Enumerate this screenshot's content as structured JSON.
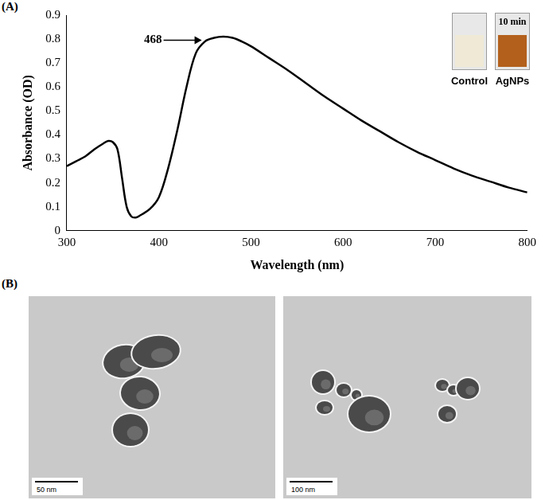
{
  "panels": [
    "(A)",
    "(B)"
  ],
  "chart_data": {
    "type": "line",
    "x_label": "Wavelength (nm)",
    "y_label": "Absorbance (OD)",
    "x": [
      300,
      310,
      320,
      330,
      340,
      345,
      350,
      355,
      360,
      365,
      370,
      375,
      380,
      390,
      400,
      410,
      420,
      430,
      440,
      450,
      460,
      470,
      480,
      490,
      500,
      520,
      540,
      560,
      580,
      600,
      620,
      640,
      660,
      680,
      700,
      720,
      740,
      760,
      780,
      800
    ],
    "values": [
      0.27,
      0.29,
      0.31,
      0.34,
      0.365,
      0.375,
      0.37,
      0.34,
      0.22,
      0.1,
      0.06,
      0.055,
      0.065,
      0.09,
      0.14,
      0.26,
      0.42,
      0.6,
      0.74,
      0.79,
      0.805,
      0.81,
      0.805,
      0.79,
      0.77,
      0.72,
      0.67,
      0.615,
      0.56,
      0.51,
      0.46,
      0.415,
      0.37,
      0.33,
      0.295,
      0.26,
      0.23,
      0.205,
      0.18,
      0.16
    ],
    "color": "#000000",
    "xlim": [
      300,
      800
    ],
    "xticks": [
      300,
      400,
      500,
      600,
      700,
      800
    ],
    "ylim": [
      0,
      0.9
    ],
    "yticks": [
      0,
      0.1,
      0.2,
      0.3,
      0.4,
      0.5,
      0.6,
      0.7,
      0.8,
      0.9
    ],
    "grid": false,
    "annotations": [
      {
        "text": "468",
        "x": 468
      }
    ]
  },
  "inset": {
    "cuvettes": [
      {
        "label": "Control",
        "color": "#efe9d6"
      },
      {
        "label": "AgNPs",
        "color": "#b3601c",
        "text": "10 min"
      }
    ]
  },
  "tem_images": [
    {
      "scale_bar": "50 nm"
    },
    {
      "scale_bar": "100 nm"
    }
  ]
}
